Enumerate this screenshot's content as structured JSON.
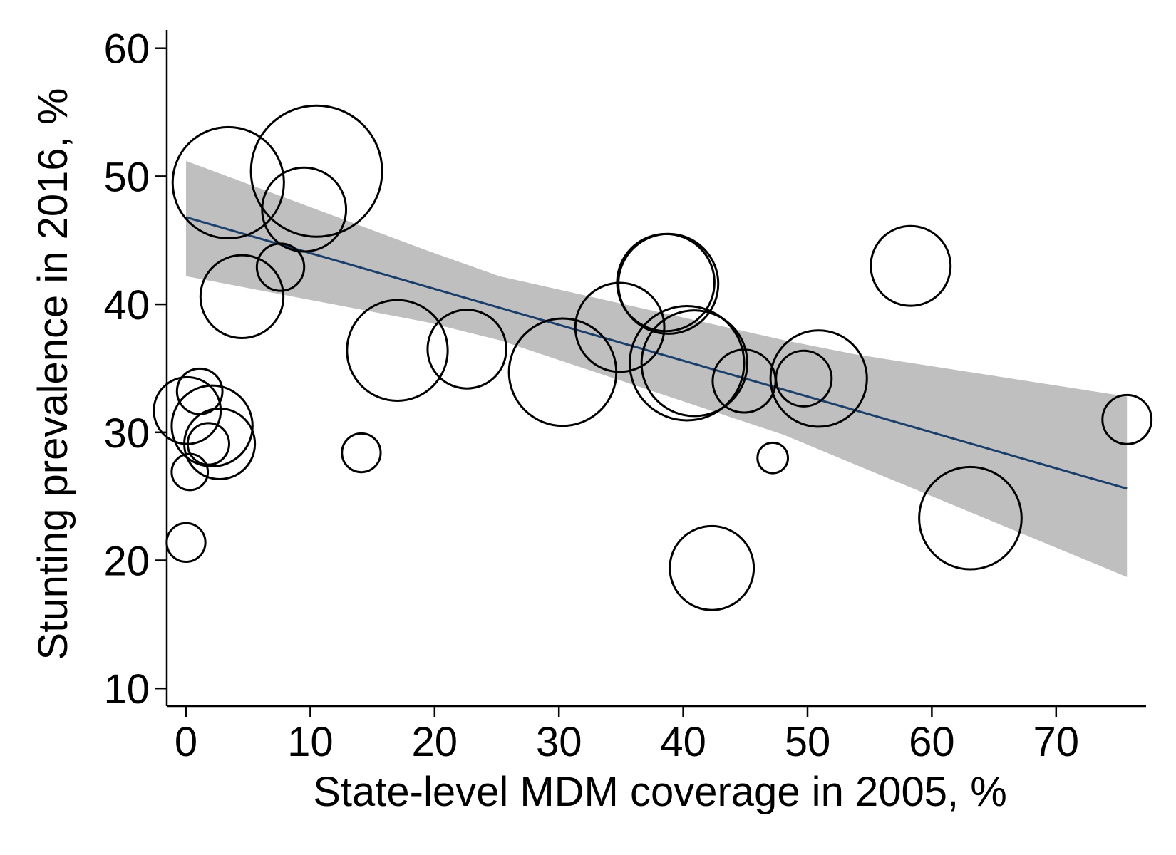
{
  "chart_data": {
    "type": "scatter",
    "subtype": "weighted-bubble-scatter-with-linear-fit",
    "title": "",
    "xlabel": "State-level MDM coverage in 2005, %",
    "ylabel": "Stunting prevalence in 2016, %",
    "xlim": [
      -1.5,
      77.4
    ],
    "ylim": [
      8.6,
      61.4
    ],
    "xticks": [
      0,
      10,
      20,
      30,
      40,
      50,
      60,
      70
    ],
    "yticks": [
      10,
      20,
      30,
      40,
      50,
      60
    ],
    "xtick_labels": [
      "0",
      "10",
      "20",
      "30",
      "40",
      "50",
      "60",
      "70"
    ],
    "ytick_labels": [
      "10",
      "20",
      "30",
      "40",
      "50",
      "60"
    ],
    "grid": false,
    "legend": "none",
    "colors": {
      "bubble_stroke": "#000000",
      "fit_line": "#1a3f6b",
      "ci_band": "#bfbfbf",
      "axis": "#000000"
    },
    "points": [
      {
        "x": 3.4,
        "y": 49.5,
        "weight": 0.72
      },
      {
        "x": 10.5,
        "y": 50.4,
        "weight": 1.0
      },
      {
        "x": 9.5,
        "y": 47.4,
        "weight": 0.41
      },
      {
        "x": 7.6,
        "y": 42.9,
        "weight": 0.13
      },
      {
        "x": 4.5,
        "y": 40.6,
        "weight": 0.4
      },
      {
        "x": 0.1,
        "y": 31.7,
        "weight": 0.26
      },
      {
        "x": 1.1,
        "y": 33.2,
        "weight": 0.12
      },
      {
        "x": 2.1,
        "y": 30.5,
        "weight": 0.38
      },
      {
        "x": 2.7,
        "y": 29.1,
        "weight": 0.29
      },
      {
        "x": 1.8,
        "y": 29.1,
        "weight": 0.1
      },
      {
        "x": 0.3,
        "y": 26.9,
        "weight": 0.076
      },
      {
        "x": 0.0,
        "y": 21.4,
        "weight": 0.087
      },
      {
        "x": 14.1,
        "y": 28.4,
        "weight": 0.087
      },
      {
        "x": 17.0,
        "y": 36.4,
        "weight": 0.59
      },
      {
        "x": 22.6,
        "y": 36.5,
        "weight": 0.36
      },
      {
        "x": 30.3,
        "y": 34.7,
        "weight": 0.67
      },
      {
        "x": 34.9,
        "y": 38.2,
        "weight": 0.46
      },
      {
        "x": 38.6,
        "y": 41.7,
        "weight": 0.55
      },
      {
        "x": 38.8,
        "y": 41.6,
        "weight": 0.58
      },
      {
        "x": 40.3,
        "y": 35.4,
        "weight": 0.76
      },
      {
        "x": 40.9,
        "y": 35.4,
        "weight": 0.65
      },
      {
        "x": 42.3,
        "y": 19.4,
        "weight": 0.41
      },
      {
        "x": 44.9,
        "y": 34.0,
        "weight": 0.23
      },
      {
        "x": 47.2,
        "y": 28.0,
        "weight": 0.054
      },
      {
        "x": 49.7,
        "y": 34.2,
        "weight": 0.18
      },
      {
        "x": 50.9,
        "y": 34.2,
        "weight": 0.54
      },
      {
        "x": 58.3,
        "y": 43.0,
        "weight": 0.37
      },
      {
        "x": 63.1,
        "y": 23.3,
        "weight": 0.61
      },
      {
        "x": 75.7,
        "y": 31.0,
        "weight": 0.14
      }
    ],
    "fit_line": {
      "x": [
        0.0,
        75.7
      ],
      "y": [
        46.8,
        25.6
      ]
    },
    "ci_band": {
      "x": [
        0.0,
        19.4,
        25.2,
        48.1,
        53.8,
        75.7
      ],
      "upper": [
        51.2,
        44.2,
        42.2,
        37.2,
        36.1,
        32.8
      ],
      "lower": [
        42.2,
        38.6,
        37.2,
        29.8,
        27.5,
        18.7
      ]
    }
  }
}
